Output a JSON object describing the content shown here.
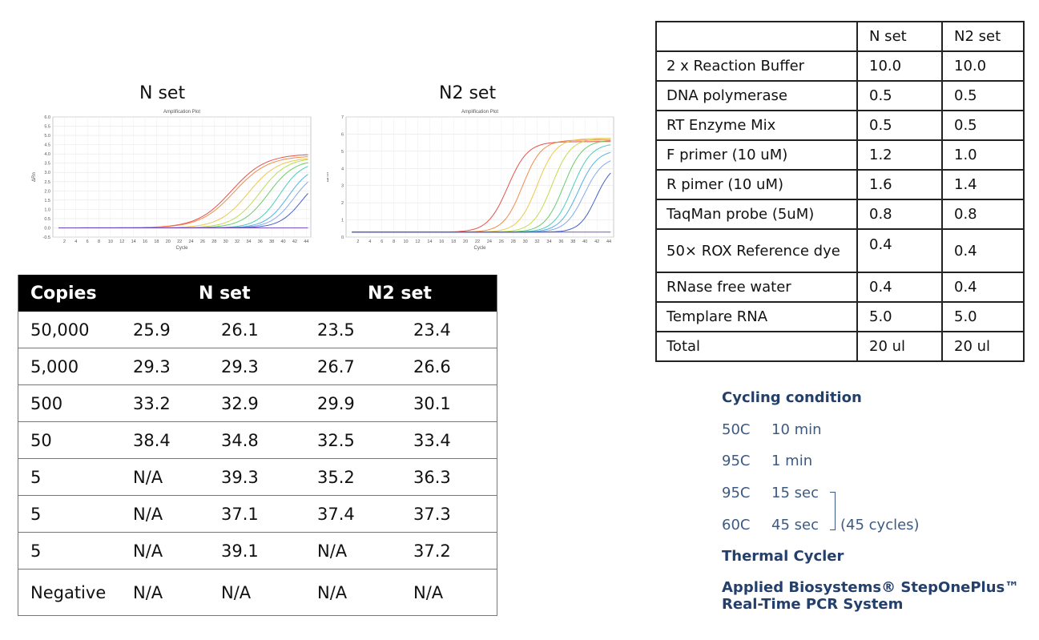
{
  "plots": [
    {
      "heading": "N set",
      "subtitle": "Amplification Plot",
      "ylabel": "ΔRn",
      "xlabel": "Cycle",
      "yticks": [
        "6.0",
        "5.5",
        "5.0",
        "4.5",
        "4.0",
        "3.5",
        "3.0",
        "2.5",
        "2.0",
        "1.5",
        "1.0",
        "0.5",
        "0.0",
        "-0.5"
      ],
      "xticks": [
        "2",
        "4",
        "6",
        "8",
        "10",
        "12",
        "14",
        "16",
        "18",
        "20",
        "22",
        "24",
        "26",
        "28",
        "30",
        "32",
        "34",
        "36",
        "38",
        "40",
        "42",
        "44"
      ]
    },
    {
      "heading": "N2 set",
      "subtitle": "Amplification Plot",
      "ylabel": "ΔRn",
      "xlabel": "Cycle",
      "yticks": [
        "7",
        "6",
        "5",
        "4",
        "3",
        "2",
        "1",
        "0"
      ],
      "xticks": [
        "2",
        "4",
        "6",
        "8",
        "10",
        "12",
        "14",
        "16",
        "18",
        "20",
        "22",
        "24",
        "26",
        "28",
        "30",
        "32",
        "34",
        "36",
        "38",
        "40",
        "42",
        "44"
      ]
    }
  ],
  "ct_table": {
    "headers": [
      "Copies",
      "N set",
      "N2 set"
    ],
    "rows": [
      [
        "50,000",
        "25.9",
        "26.1",
        "23.5",
        "23.4"
      ],
      [
        "5,000",
        "29.3",
        "29.3",
        "26.7",
        "26.6"
      ],
      [
        "500",
        "33.2",
        "32.9",
        "29.9",
        "30.1"
      ],
      [
        "50",
        "38.4",
        "34.8",
        "32.5",
        "33.4"
      ],
      [
        "5",
        "N/A",
        "39.3",
        "35.2",
        "36.3"
      ],
      [
        "5",
        "N/A",
        "37.1",
        "37.4",
        "37.3"
      ],
      [
        "5",
        "N/A",
        "39.1",
        "N/A",
        "37.2"
      ],
      [
        "Negative",
        "N/A",
        "N/A",
        "N/A",
        "N/A"
      ]
    ]
  },
  "reagent_table": {
    "headers": [
      "",
      "N set",
      "N2 set"
    ],
    "rows": [
      [
        "2 x Reaction Buffer",
        "10.0",
        "10.0"
      ],
      [
        "DNA polymerase",
        "0.5",
        "0.5"
      ],
      [
        "RT Enzyme Mix",
        "0.5",
        "0.5"
      ],
      [
        "F primer (10 uM)",
        "1.2",
        "1.0"
      ],
      [
        "R pimer (10 uM)",
        "1.6",
        "1.4"
      ],
      [
        "TaqMan probe (5uM)",
        "0.8",
        "0.8"
      ],
      [
        "50× ROX Reference dye",
        "0.4",
        "0.4"
      ],
      [
        "RNase free water",
        "0.4",
        "0.4"
      ],
      [
        "Templare RNA",
        "5.0",
        "5.0"
      ],
      [
        "Total",
        "20 ul",
        "20 ul"
      ]
    ]
  },
  "cycling": {
    "heading": "Cycling condition",
    "steps": [
      {
        "temp": "50C",
        "time": "10 min"
      },
      {
        "temp": "95C",
        "time": "1 min"
      },
      {
        "temp": "95C",
        "time": "15 sec"
      },
      {
        "temp": "60C",
        "time": "45 sec"
      }
    ],
    "repeat_label": "(45 cycles)",
    "instrument_heading": "Thermal Cycler",
    "instrument_line1": "Applied Biosystems® StepOnePlus™",
    "instrument_line2": "Real-Time PCR System"
  },
  "colors": {
    "curves": [
      "#e0403a",
      "#ef7f3a",
      "#e8c33a",
      "#b9d83c",
      "#5cc85a",
      "#3cc8b0",
      "#46a8e0",
      "#7aa0e8",
      "#3050c8",
      "#6a40c8"
    ]
  }
}
